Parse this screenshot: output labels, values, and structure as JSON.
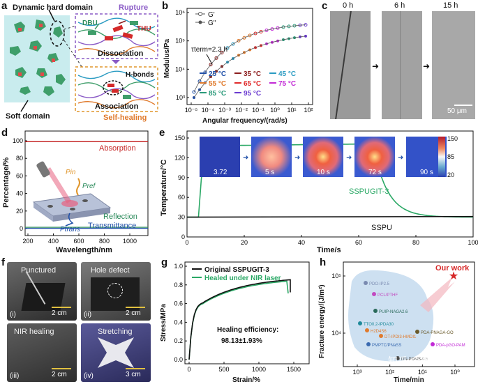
{
  "panel_labels": {
    "a": "a",
    "b": "b",
    "c": "c",
    "d": "d",
    "e": "e",
    "f": "f",
    "g": "g",
    "h": "h"
  },
  "panel_a": {
    "dynamic_hard_domain": "Dynamic hard domain",
    "rupture": "Rupture",
    "dbu": "DBU",
    "thu": "THU",
    "dissociation": "Dissociation",
    "h_bonds": "H-bonds",
    "association": "Association",
    "soft_domain": "Soft domain",
    "self_healing": "Self-healing"
  },
  "panel_b": {
    "legend": {
      "g1": "G'",
      "g2": "G''"
    },
    "tau_term": "τterm=2.3 h",
    "xlabel": "Angular frequency/(rad/s)",
    "ylabel": "Modulus/Pa",
    "xticks": [
      "10⁻⁵",
      "10⁻⁴",
      "10⁻³",
      "10⁻²",
      "10⁻¹",
      "10⁰",
      "10¹",
      "10²"
    ],
    "yticks": [
      "10³",
      "10⁴",
      "10⁵",
      "10⁶"
    ],
    "temps": [
      {
        "label": "25 °C",
        "color": "#1f4fa8"
      },
      {
        "label": "35 °C",
        "color": "#8b1d1d"
      },
      {
        "label": "45 °C",
        "color": "#2a9bc2"
      },
      {
        "label": "55 °C",
        "color": "#e07a2c"
      },
      {
        "label": "65 °C",
        "color": "#e02a2a"
      },
      {
        "label": "75 °C",
        "color": "#c22ad6"
      },
      {
        "label": "85 °C",
        "color": "#2a9a7a"
      },
      {
        "label": "95 °C",
        "color": "#6a3ad0"
      }
    ]
  },
  "panel_c": {
    "times": [
      "0 h",
      "6 h",
      "15 h"
    ],
    "scale": "50 μm"
  },
  "panel_d": {
    "absorption": "Absorption",
    "reflection": "Reflection",
    "transmittance": "Transmittance",
    "p_in": "Pin",
    "p_ref": "Pref",
    "p_trans": "Ptrans",
    "xlabel": "Wavelength/nm",
    "ylabel": "Percentage/%",
    "xticks": [
      "200",
      "400",
      "600",
      "800",
      "1000"
    ],
    "yticks": [
      "0",
      "20",
      "40",
      "60",
      "80",
      "100"
    ]
  },
  "panel_e": {
    "sample": "SSPUGIT-3",
    "control": "SSPU",
    "xlabel": "Time/s",
    "ylabel": "Temperature/°C",
    "xticks": [
      "0",
      "20",
      "40",
      "60",
      "80",
      "100"
    ],
    "yticks": [
      "0",
      "30",
      "60",
      "90",
      "120",
      "150"
    ],
    "thermal_times": [
      "3.72",
      "5 s",
      "10 s",
      "72 s",
      "90 s"
    ],
    "colorbar": [
      "150",
      "85",
      "20"
    ]
  },
  "panel_f": {
    "photos": [
      {
        "title": "Punctured",
        "index": "(i)",
        "scale": "2 cm"
      },
      {
        "title": "Hole defect",
        "index": "(ii)",
        "scale": "2 cm"
      },
      {
        "title": "NIR healing",
        "index": "(iii)",
        "scale": "2 cm"
      },
      {
        "title": "Stretching",
        "index": "(iv)",
        "scale": "3 cm"
      }
    ]
  },
  "panel_g": {
    "legend": [
      "Original SSPUGIT-3",
      "Healed under NIR laser"
    ],
    "efficiency_label": "Healing efficiency:",
    "efficiency_value": "98.13±1.93%",
    "xlabel": "Strain/%",
    "ylabel": "Stress/MPa",
    "xticks": [
      "0",
      "500",
      "1000",
      "1500"
    ],
    "yticks": [
      "0.0",
      "0.2",
      "0.4",
      "0.6",
      "0.8",
      "1.0"
    ]
  },
  "panel_h": {
    "our_work": "Our work",
    "xlabel": "Time/min",
    "ylabel": "Fracture energy/(J/m²)",
    "xticks": [
      "10³",
      "10²",
      "10¹",
      "10⁰"
    ],
    "yticks": [
      "10⁴",
      "10⁵"
    ],
    "refs": [
      "PDO-IP2.5",
      "PCL/PTHF",
      "PUIP-NAGA2.6",
      "TTO0.2-IPDA30",
      "H2D4S6",
      "DT-IPDI3-HMDI1",
      "PDA-PNAGA-GO",
      "PMPTC/PNaSS",
      "PDA-pGO-PAM",
      "DN-PDMS-0.5"
    ],
    "watermark": "知乎 @高分子能源"
  }
}
